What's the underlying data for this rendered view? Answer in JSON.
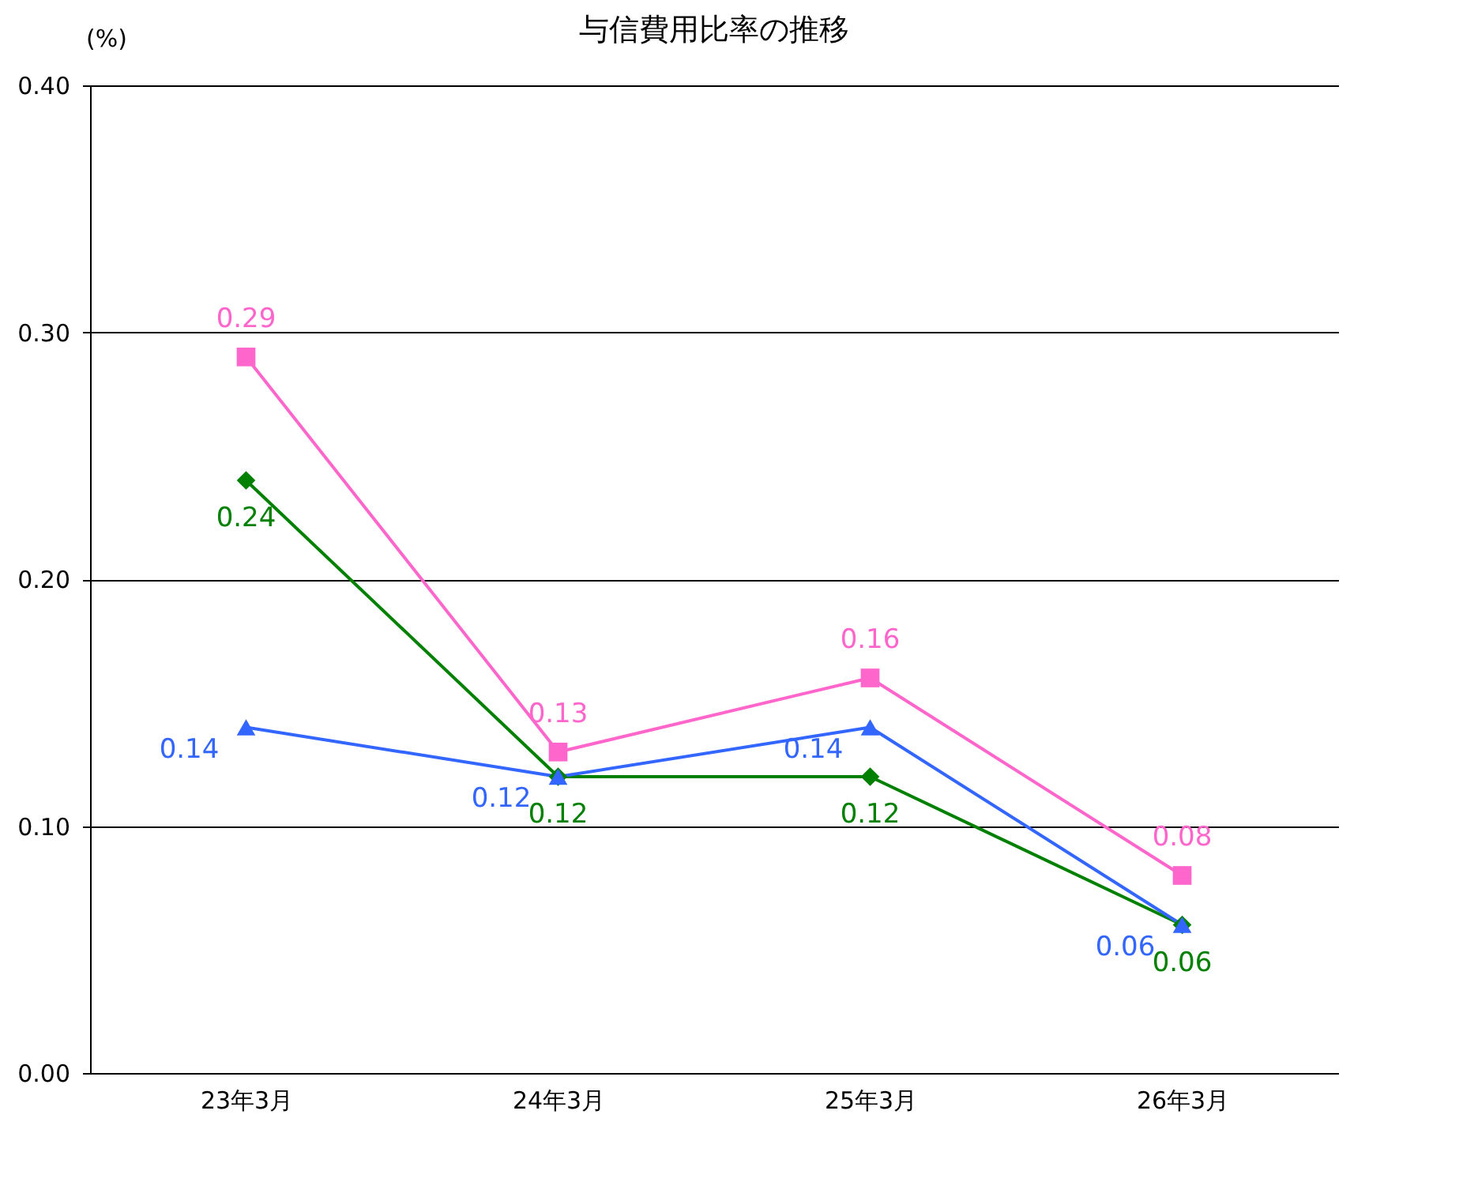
{
  "chart_data": {
    "type": "line",
    "title": "与信費用比率の推移",
    "ylabel": "(%)",
    "categories": [
      "23年3月",
      "24年3月",
      "25年3月",
      "26年3月"
    ],
    "series": [
      {
        "color": "#ff66cc",
        "marker": "square",
        "values": [
          0.29,
          0.13,
          0.16,
          0.08
        ]
      },
      {
        "color": "#008000",
        "marker": "diamond",
        "values": [
          0.24,
          0.12,
          0.12,
          0.06
        ]
      },
      {
        "color": "#3366ff",
        "marker": "triangle",
        "values": [
          0.14,
          0.12,
          0.14,
          0.06
        ]
      }
    ],
    "ylim": [
      0,
      0.4
    ],
    "yticks": [
      {
        "value": 0,
        "label": "0.00"
      },
      {
        "value": 0.1,
        "label": "0.10"
      },
      {
        "value": 0.2,
        "label": "0.20"
      },
      {
        "value": 0.3,
        "label": "0.30"
      },
      {
        "value": 0.4,
        "label": "0.40"
      }
    ],
    "grid": "y",
    "data_labels": true
  }
}
